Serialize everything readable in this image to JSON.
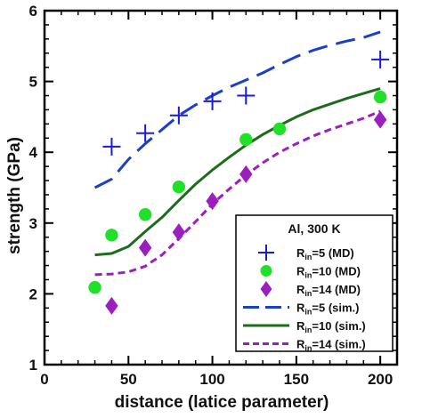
{
  "chart_data": {
    "type": "scatter",
    "xlabel": "distance (latice parameter)",
    "ylabel": "strength (GPa)",
    "xlim": [
      0,
      210
    ],
    "ylim": [
      1,
      6
    ],
    "xticks": [
      0,
      50,
      100,
      150,
      200
    ],
    "yticks": [
      1,
      2,
      3,
      4,
      5,
      6
    ],
    "grid": false,
    "legend_placement": "bottom-right",
    "legend_title": "Al, 300 K",
    "series": [
      {
        "name": "Rin=5 (MD)",
        "label_main": "R",
        "label_sub": "in",
        "label_rest": "=5 (MD)",
        "kind": "marker",
        "marker": "plus",
        "color": "#1a1adb",
        "points": [
          [
            40,
            4.08
          ],
          [
            60,
            4.27
          ],
          [
            80,
            4.52
          ],
          [
            100,
            4.72
          ],
          [
            120,
            4.8
          ],
          [
            200,
            5.31
          ]
        ]
      },
      {
        "name": "Rin=10 (MD)",
        "label_main": "R",
        "label_sub": "in",
        "label_rest": "=10 (MD)",
        "kind": "marker",
        "marker": "circle",
        "color": "#22e02a",
        "points": [
          [
            30,
            2.09
          ],
          [
            40,
            2.83
          ],
          [
            60,
            3.12
          ],
          [
            80,
            3.51
          ],
          [
            120,
            4.18
          ],
          [
            140,
            4.33
          ],
          [
            200,
            4.78
          ]
        ]
      },
      {
        "name": "Rin=14 (MD)",
        "label_main": "R",
        "label_sub": "in",
        "label_rest": "=14 (MD)",
        "kind": "marker",
        "marker": "diamond",
        "color": "#9b1fbe",
        "points": [
          [
            40,
            1.83
          ],
          [
            60,
            2.65
          ],
          [
            80,
            2.87
          ],
          [
            100,
            3.31
          ],
          [
            120,
            3.69
          ],
          [
            200,
            4.46
          ]
        ]
      },
      {
        "name": "Rin=5 (sim.)",
        "label_main": "R",
        "label_sub": "in",
        "label_rest": "=5 (sim.)",
        "kind": "line",
        "dash": "long",
        "color": "#1a3fc9",
        "points": [
          [
            30,
            3.5
          ],
          [
            40,
            3.62
          ],
          [
            50,
            3.9
          ],
          [
            60,
            4.12
          ],
          [
            70,
            4.32
          ],
          [
            80,
            4.52
          ],
          [
            90,
            4.67
          ],
          [
            100,
            4.8
          ],
          [
            110,
            4.92
          ],
          [
            120,
            5.02
          ],
          [
            130,
            5.12
          ],
          [
            140,
            5.24
          ],
          [
            150,
            5.35
          ],
          [
            160,
            5.44
          ],
          [
            170,
            5.51
          ],
          [
            180,
            5.57
          ],
          [
            190,
            5.62
          ],
          [
            200,
            5.7
          ]
        ]
      },
      {
        "name": "Rin=10 (sim.)",
        "label_main": "R",
        "label_sub": "in",
        "label_rest": "=10 (sim.)",
        "kind": "line",
        "dash": "solid",
        "color": "#1e6b1e",
        "points": [
          [
            30,
            2.55
          ],
          [
            40,
            2.57
          ],
          [
            50,
            2.67
          ],
          [
            60,
            2.88
          ],
          [
            70,
            3.08
          ],
          [
            80,
            3.32
          ],
          [
            90,
            3.55
          ],
          [
            100,
            3.75
          ],
          [
            110,
            3.93
          ],
          [
            120,
            4.1
          ],
          [
            130,
            4.25
          ],
          [
            140,
            4.38
          ],
          [
            150,
            4.5
          ],
          [
            160,
            4.6
          ],
          [
            170,
            4.68
          ],
          [
            180,
            4.76
          ],
          [
            190,
            4.83
          ],
          [
            200,
            4.9
          ]
        ]
      },
      {
        "name": "Rin=14 (sim.)",
        "label_main": "R",
        "label_sub": "in",
        "label_rest": "=14 (sim.)",
        "kind": "line",
        "dash": "short",
        "color": "#9b1fbe",
        "points": [
          [
            30,
            2.27
          ],
          [
            40,
            2.28
          ],
          [
            50,
            2.31
          ],
          [
            60,
            2.39
          ],
          [
            70,
            2.55
          ],
          [
            80,
            2.78
          ],
          [
            90,
            3.02
          ],
          [
            100,
            3.27
          ],
          [
            110,
            3.48
          ],
          [
            120,
            3.68
          ],
          [
            130,
            3.85
          ],
          [
            140,
            4.0
          ],
          [
            150,
            4.12
          ],
          [
            160,
            4.23
          ],
          [
            170,
            4.32
          ],
          [
            180,
            4.4
          ],
          [
            190,
            4.48
          ],
          [
            200,
            4.58
          ]
        ]
      }
    ]
  }
}
